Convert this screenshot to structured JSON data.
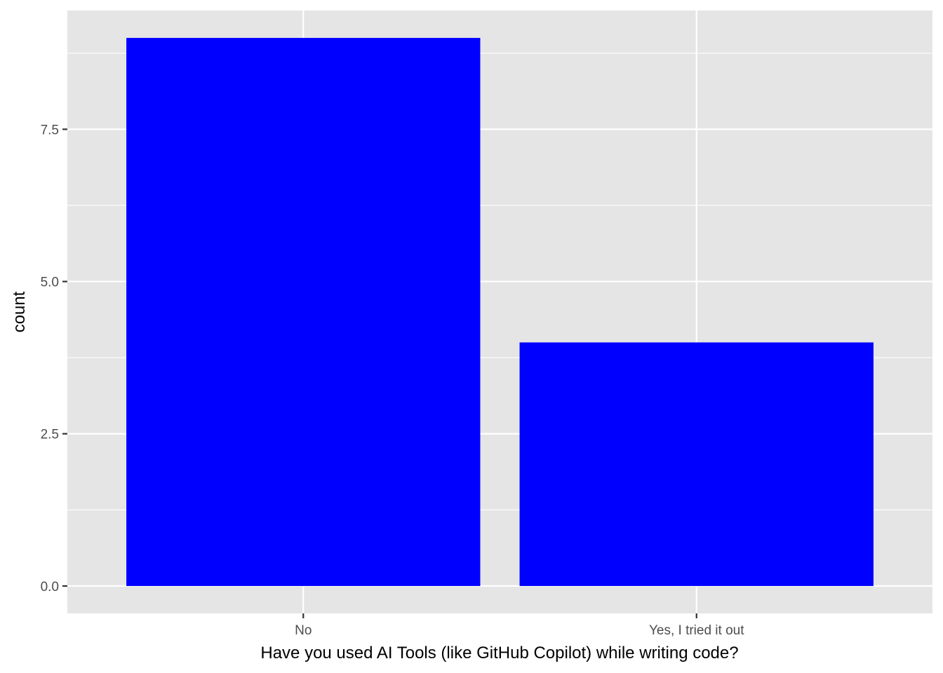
{
  "chart_data": {
    "type": "bar",
    "categories": [
      "No",
      "Yes, I tried it out"
    ],
    "values": [
      9,
      4
    ],
    "title": "",
    "xlabel": "Have you used AI Tools (like GitHub Copilot) while writing code?",
    "ylabel": "count",
    "ylim": [
      -0.45,
      9.45
    ],
    "yticks": [
      0.0,
      2.5,
      5.0,
      7.5
    ],
    "ytick_labels": [
      "0.0",
      "2.5",
      "5.0",
      "7.5"
    ],
    "grid": true,
    "legend": "none"
  },
  "colors": {
    "bar_fill": "#0000ff",
    "panel_background": "#e5e5e5",
    "grid_line": "#ffffff",
    "tick_mark": "#333333",
    "tick_text": "#4d4d4d",
    "axis_title": "#000000"
  }
}
